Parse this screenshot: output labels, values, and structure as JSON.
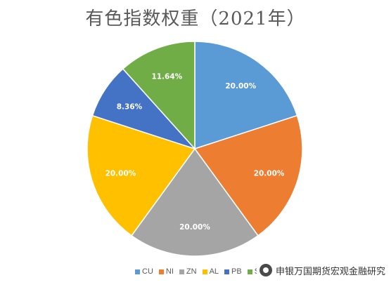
{
  "chart_data": {
    "type": "pie",
    "title": "有色指数权重（2021年）",
    "categories": [
      "CU",
      "NI",
      "ZN",
      "AL",
      "PB",
      "SN"
    ],
    "values": [
      20.0,
      20.0,
      20.0,
      20.0,
      8.36,
      11.64
    ],
    "labels": [
      "20.00%",
      "20.00%",
      "20.00%",
      "20.00%",
      "8.36%",
      "11.64%"
    ],
    "colors": [
      "#5B9BD5",
      "#ED7D31",
      "#A5A5A5",
      "#FFC000",
      "#4472C4",
      "#70AD47"
    ],
    "legend_position": "bottom"
  },
  "watermark": {
    "icon": "wechat-icon",
    "text": "申银万国期货宏观金融研究"
  }
}
